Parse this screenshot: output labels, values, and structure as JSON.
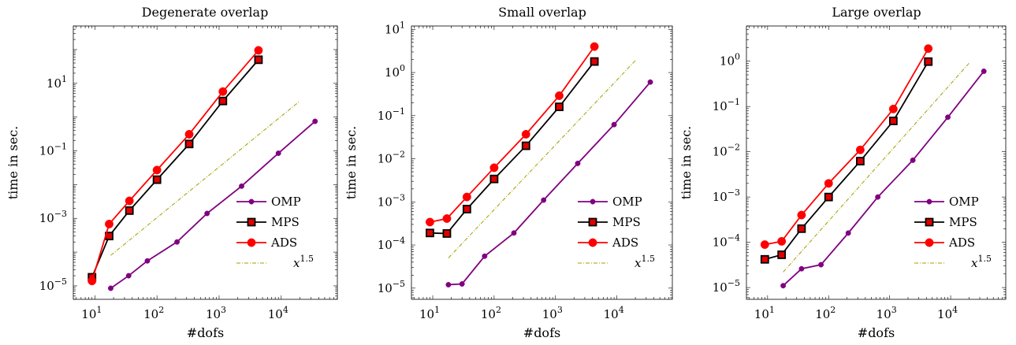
{
  "chart_data": [
    {
      "type": "line",
      "title": "Degenerate overlap",
      "xlabel": "#dofs",
      "ylabel": "time in sec.",
      "xscale": "log",
      "yscale": "log",
      "xlim": [
        4.5,
        80000
      ],
      "ylim": [
        4e-06,
        500
      ],
      "xticks": [
        {
          "value": 10,
          "base": "10",
          "exp": "1"
        },
        {
          "value": 100,
          "base": "10",
          "exp": "2"
        },
        {
          "value": 1000,
          "base": "10",
          "exp": "3"
        },
        {
          "value": 10000,
          "base": "10",
          "exp": "4"
        }
      ],
      "yticks": [
        {
          "value": 1e-05,
          "base": "10",
          "exp": "−5"
        },
        {
          "value": 0.001,
          "base": "10",
          "exp": "−3"
        },
        {
          "value": 0.1,
          "base": "10",
          "exp": "−1"
        },
        {
          "value": 10,
          "base": "10",
          "exp": "1"
        }
      ],
      "legend_position": "bottom-right",
      "series": [
        {
          "name": "OMP",
          "color": "#800080",
          "marker": "small-circle",
          "x": [
            18,
            35,
            70,
            210,
            640,
            2300,
            9000,
            35000
          ],
          "y": [
            8.5e-06,
            2e-05,
            5.5e-05,
            0.0002,
            0.0014,
            0.009,
            0.085,
            0.75
          ]
        },
        {
          "name": "MPS",
          "color": "#000000",
          "marker": "square",
          "x": [
            9,
            17,
            36,
            100,
            330,
            1150,
            4300
          ],
          "y": [
            1.8e-05,
            0.0003,
            0.0017,
            0.014,
            0.16,
            3.0,
            50
          ]
        },
        {
          "name": "ADS",
          "color": "#ff0000",
          "marker": "circle",
          "x": [
            9,
            17,
            36,
            100,
            330,
            1150,
            4300
          ],
          "y": [
            1.4e-05,
            0.00068,
            0.0033,
            0.027,
            0.31,
            5.7,
            95
          ]
        },
        {
          "name": "x^1.5",
          "color": "#a0a000",
          "marker": "none",
          "dash": true,
          "x": [
            18,
            20000
          ],
          "y": [
            8e-05,
            3.0
          ]
        }
      ]
    },
    {
      "type": "line",
      "title": "Small overlap",
      "xlabel": "#dofs",
      "ylabel": "time in sec.",
      "xscale": "log",
      "yscale": "log",
      "xlim": [
        4.5,
        80000
      ],
      "ylim": [
        5.5e-06,
        12
      ],
      "xticks": [
        {
          "value": 10,
          "base": "10",
          "exp": "1"
        },
        {
          "value": 100,
          "base": "10",
          "exp": "2"
        },
        {
          "value": 1000,
          "base": "10",
          "exp": "3"
        },
        {
          "value": 10000,
          "base": "10",
          "exp": "4"
        }
      ],
      "yticks": [
        {
          "value": 1e-05,
          "base": "10",
          "exp": "−5"
        },
        {
          "value": 0.0001,
          "base": "10",
          "exp": "−4"
        },
        {
          "value": 0.001,
          "base": "10",
          "exp": "−3"
        },
        {
          "value": 0.01,
          "base": "10",
          "exp": "−2"
        },
        {
          "value": 0.1,
          "base": "10",
          "exp": "−1"
        },
        {
          "value": 1,
          "base": "10",
          "exp": "0"
        },
        {
          "value": 10,
          "base": "10",
          "exp": "1"
        }
      ],
      "legend_position": "bottom-right",
      "series": [
        {
          "name": "OMP",
          "color": "#800080",
          "marker": "small-circle",
          "x": [
            18,
            30,
            70,
            210,
            640,
            2300,
            9000,
            35000
          ],
          "y": [
            1.2e-05,
            1.25e-05,
            5.5e-05,
            0.00019,
            0.0011,
            0.0078,
            0.062,
            0.6
          ]
        },
        {
          "name": "MPS",
          "color": "#000000",
          "marker": "square",
          "x": [
            9,
            17,
            36,
            100,
            330,
            1150,
            4300
          ],
          "y": [
            0.00019,
            0.000185,
            0.00068,
            0.0034,
            0.02,
            0.16,
            1.8
          ]
        },
        {
          "name": "ADS",
          "color": "#ff0000",
          "marker": "circle",
          "x": [
            9,
            17,
            36,
            100,
            330,
            1150,
            4300
          ],
          "y": [
            0.00034,
            0.00041,
            0.0013,
            0.0062,
            0.037,
            0.29,
            4.0
          ]
        },
        {
          "name": "x^1.5",
          "color": "#a0a000",
          "marker": "none",
          "dash": true,
          "x": [
            18,
            20000
          ],
          "y": [
            5e-05,
            1.9
          ]
        }
      ]
    },
    {
      "type": "line",
      "title": "Large overlap",
      "xlabel": "#dofs",
      "ylabel": "time in sec.",
      "xscale": "log",
      "yscale": "log",
      "xlim": [
        4.5,
        80000
      ],
      "ylim": [
        5.5e-06,
        6
      ],
      "xticks": [
        {
          "value": 10,
          "base": "10",
          "exp": "1"
        },
        {
          "value": 100,
          "base": "10",
          "exp": "2"
        },
        {
          "value": 1000,
          "base": "10",
          "exp": "3"
        },
        {
          "value": 10000,
          "base": "10",
          "exp": "4"
        }
      ],
      "yticks": [
        {
          "value": 1e-05,
          "base": "10",
          "exp": "−5"
        },
        {
          "value": 0.0001,
          "base": "10",
          "exp": "−4"
        },
        {
          "value": 0.001,
          "base": "10",
          "exp": "−3"
        },
        {
          "value": 0.01,
          "base": "10",
          "exp": "−2"
        },
        {
          "value": 0.1,
          "base": "10",
          "exp": "−1"
        },
        {
          "value": 1,
          "base": "10",
          "exp": "0"
        }
      ],
      "legend_position": "bottom-right",
      "series": [
        {
          "name": "OMP",
          "color": "#800080",
          "marker": "small-circle",
          "x": [
            18,
            36,
            75,
            210,
            640,
            2400,
            9000,
            35000
          ],
          "y": [
            1.1e-05,
            2.6e-05,
            3.2e-05,
            0.00016,
            0.001,
            0.0065,
            0.058,
            0.6
          ]
        },
        {
          "name": "MPS",
          "color": "#000000",
          "marker": "square",
          "x": [
            9,
            17,
            36,
            100,
            330,
            1150,
            4300
          ],
          "y": [
            4.2e-05,
            5.3e-05,
            0.0002,
            0.001,
            0.0062,
            0.048,
            0.98
          ]
        },
        {
          "name": "ADS",
          "color": "#ff0000",
          "marker": "circle",
          "x": [
            9,
            17,
            36,
            100,
            330,
            1150,
            4300
          ],
          "y": [
            8.9e-05,
            0.000105,
            0.0004,
            0.002,
            0.011,
            0.088,
            1.9
          ]
        },
        {
          "name": "x^1.5",
          "color": "#a0a000",
          "marker": "none",
          "dash": true,
          "x": [
            18,
            20000
          ],
          "y": [
            2.2e-05,
            0.9
          ]
        }
      ]
    }
  ]
}
